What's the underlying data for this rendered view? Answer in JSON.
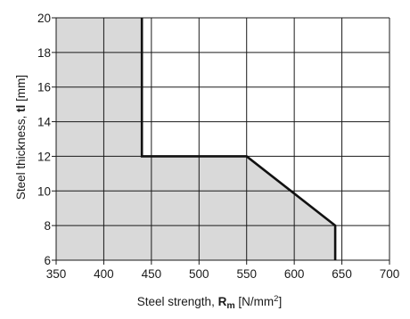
{
  "chart_data": {
    "type": "area",
    "xlabel": {
      "prefix": "Steel strength, ",
      "sym": "R",
      "sub": "m",
      "unit_pre": " [N/mm",
      "unit_sup": "2",
      "unit_post": "]"
    },
    "ylabel": {
      "prefix": "Steel thickness, ",
      "sym": "tl",
      "unit": " [mm]"
    },
    "xlim": [
      350,
      700
    ],
    "ylim": [
      6,
      20
    ],
    "xticks": [
      350,
      400,
      450,
      500,
      550,
      600,
      650,
      700
    ],
    "yticks": [
      6,
      8,
      10,
      12,
      14,
      16,
      18,
      20
    ],
    "grid": true,
    "series": [
      {
        "x": [
          440,
          440,
          550,
          643,
          643
        ],
        "y": [
          20,
          12,
          12,
          8,
          6
        ]
      }
    ],
    "colors": {
      "fill": "#d9d9d9",
      "line": "#111111",
      "grid": "#1a1a1a"
    }
  }
}
